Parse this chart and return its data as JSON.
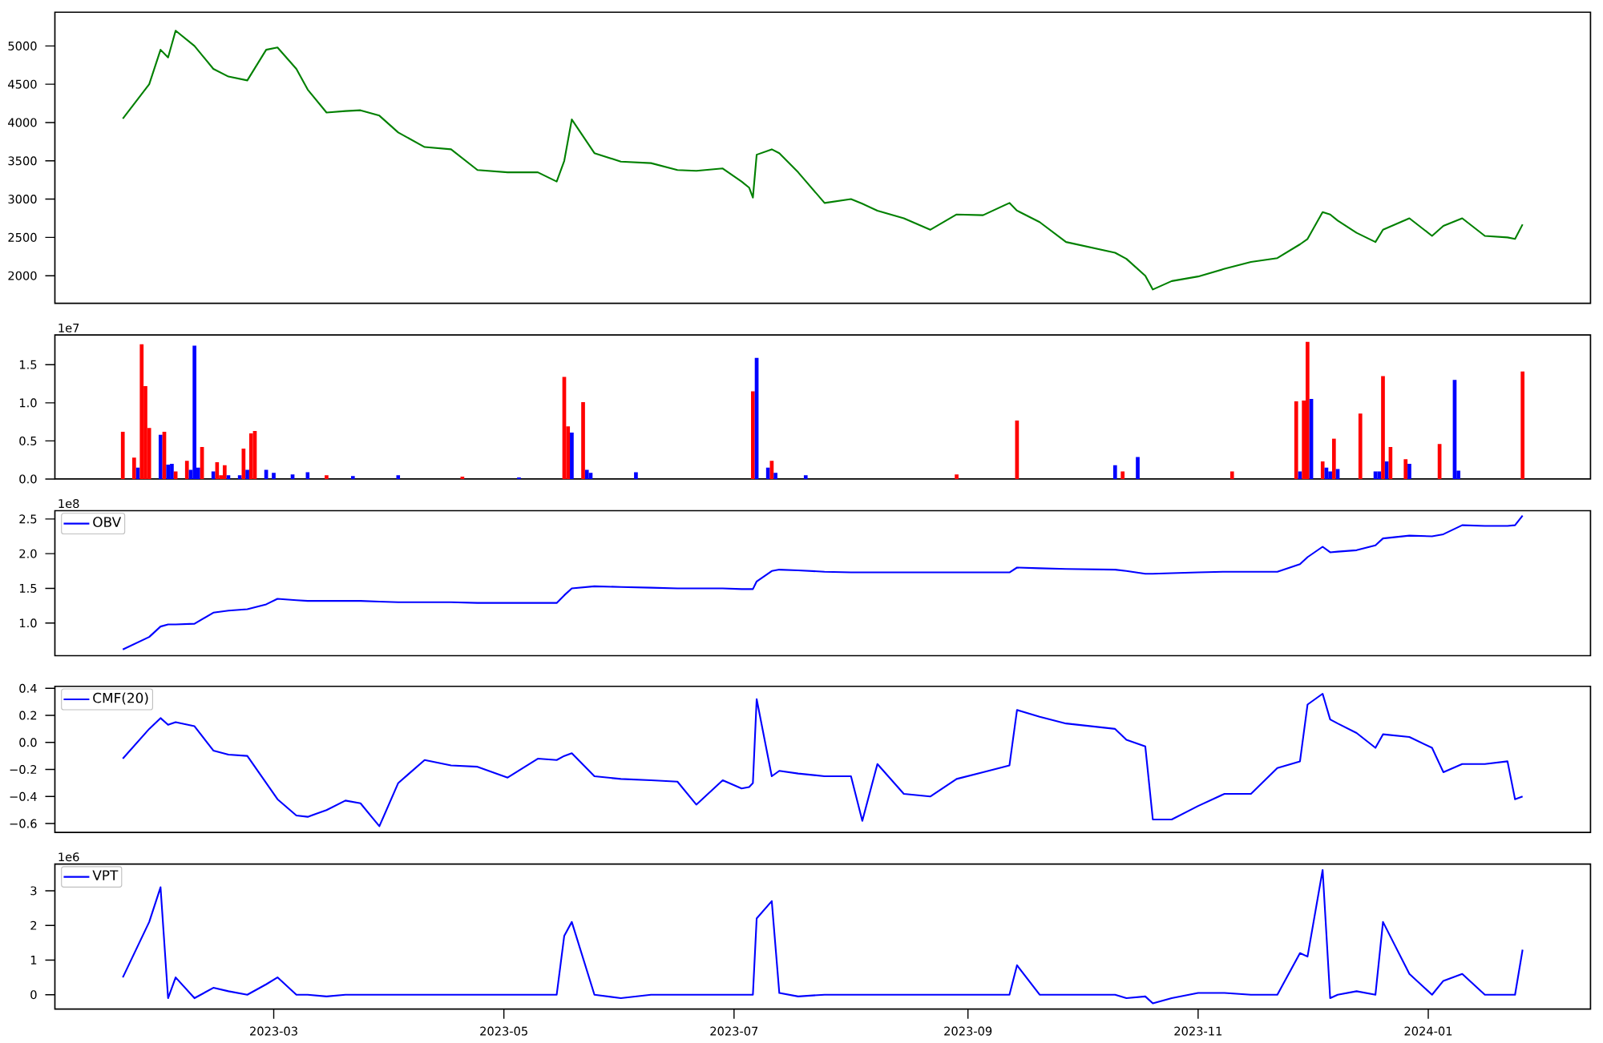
{
  "chart_data": [
    {
      "type": "line",
      "x": [
        "2023-01-20",
        "2023-01-27",
        "2023-01-30",
        "2023-02-01",
        "2023-02-03",
        "2023-02-08",
        "2023-02-13",
        "2023-02-17",
        "2023-02-22",
        "2023-02-27",
        "2023-03-02",
        "2023-03-07",
        "2023-03-10",
        "2023-03-15",
        "2023-03-20",
        "2023-03-24",
        "2023-03-29",
        "2023-04-03",
        "2023-04-10",
        "2023-04-17",
        "2023-04-24",
        "2023-05-02",
        "2023-05-10",
        "2023-05-15",
        "2023-05-17",
        "2023-05-19",
        "2023-05-25",
        "2023-06-01",
        "2023-06-09",
        "2023-06-16",
        "2023-06-21",
        "2023-06-28",
        "2023-07-03",
        "2023-07-05",
        "2023-07-06",
        "2023-07-07",
        "2023-07-11",
        "2023-07-13",
        "2023-07-18",
        "2023-07-25",
        "2023-08-01",
        "2023-08-04",
        "2023-08-08",
        "2023-08-15",
        "2023-08-22",
        "2023-08-29",
        "2023-09-05",
        "2023-09-12",
        "2023-09-14",
        "2023-09-20",
        "2023-09-27",
        "2023-10-10",
        "2023-10-13",
        "2023-10-18",
        "2023-10-20",
        "2023-10-25",
        "2023-11-01",
        "2023-11-08",
        "2023-11-15",
        "2023-11-22",
        "2023-11-28",
        "2023-11-30",
        "2023-12-04",
        "2023-12-06",
        "2023-12-08",
        "2023-12-13",
        "2023-12-18",
        "2023-12-20",
        "2023-12-27",
        "2024-01-02",
        "2024-01-05",
        "2024-01-10",
        "2024-01-16",
        "2024-01-22",
        "2024-01-24",
        "2024-01-26"
      ],
      "series": [
        {
          "color": "#008000",
          "values": [
            4050,
            4500,
            4950,
            4850,
            5200,
            5000,
            4700,
            4600,
            4550,
            4950,
            4980,
            4700,
            4430,
            4130,
            4150,
            4160,
            4090,
            3870,
            3680,
            3650,
            3380,
            3350,
            3350,
            3230,
            3500,
            4040,
            3600,
            3490,
            3470,
            3380,
            3370,
            3400,
            3230,
            3150,
            3020,
            3580,
            3650,
            3600,
            3350,
            2950,
            3000,
            2940,
            2850,
            2750,
            2600,
            2800,
            2790,
            2950,
            2850,
            2700,
            2440,
            2300,
            2220,
            2000,
            1820,
            1930,
            1990,
            2090,
            2180,
            2230,
            2410,
            2480,
            2830,
            2800,
            2720,
            2560,
            2440,
            2600,
            2750,
            2520,
            2650,
            2750,
            2520,
            2500,
            2480,
            2670
          ]
        }
      ],
      "xlim": [
        "2023-01-02",
        "2024-02-13"
      ],
      "ylim": [
        1640,
        5440
      ],
      "yticks": [
        2000,
        2500,
        3000,
        3500,
        4000,
        4500,
        5000
      ],
      "tick_labels": "y"
    },
    {
      "type": "bar",
      "x": [
        "2023-01-20",
        "2023-01-23",
        "2023-01-24",
        "2023-01-25",
        "2023-01-26",
        "2023-01-27",
        "2023-01-30",
        "2023-01-31",
        "2023-02-01",
        "2023-02-02",
        "2023-02-03",
        "2023-02-06",
        "2023-02-07",
        "2023-02-08",
        "2023-02-09",
        "2023-02-10",
        "2023-02-13",
        "2023-02-14",
        "2023-02-15",
        "2023-02-16",
        "2023-02-17",
        "2023-02-20",
        "2023-02-21",
        "2023-02-22",
        "2023-02-23",
        "2023-02-24",
        "2023-02-27",
        "2023-03-01",
        "2023-03-06",
        "2023-03-10",
        "2023-03-15",
        "2023-03-22",
        "2023-04-03",
        "2023-04-20",
        "2023-05-05",
        "2023-05-17",
        "2023-05-18",
        "2023-05-19",
        "2023-05-22",
        "2023-05-23",
        "2023-05-24",
        "2023-06-05",
        "2023-07-06",
        "2023-07-07",
        "2023-07-10",
        "2023-07-11",
        "2023-07-12",
        "2023-07-20",
        "2023-08-29",
        "2023-09-14",
        "2023-10-10",
        "2023-10-12",
        "2023-10-16",
        "2023-11-10",
        "2023-11-27",
        "2023-11-28",
        "2023-11-29",
        "2023-11-30",
        "2023-12-01",
        "2023-12-04",
        "2023-12-05",
        "2023-12-06",
        "2023-12-07",
        "2023-12-08",
        "2023-12-14",
        "2023-12-18",
        "2023-12-19",
        "2023-12-20",
        "2023-12-21",
        "2023-12-22",
        "2023-12-26",
        "2023-12-27",
        "2024-01-04",
        "2024-01-08",
        "2024-01-09",
        "2024-01-26"
      ],
      "values": [
        0.62,
        0.28,
        0.15,
        1.77,
        1.22,
        0.67,
        0.58,
        0.62,
        0.19,
        0.2,
        0.1,
        0.24,
        0.12,
        1.75,
        0.15,
        0.42,
        0.1,
        0.22,
        0.05,
        0.18,
        0.05,
        0.05,
        0.4,
        0.12,
        0.6,
        0.63,
        0.12,
        0.08,
        0.06,
        0.09,
        0.05,
        0.04,
        0.05,
        0.03,
        0.02,
        1.34,
        0.69,
        0.61,
        1.01,
        0.12,
        0.08,
        0.09,
        1.15,
        1.59,
        0.15,
        0.24,
        0.08,
        0.05,
        0.06,
        0.77,
        0.18,
        0.1,
        0.29,
        0.1,
        1.02,
        0.1,
        1.03,
        1.8,
        1.05,
        0.23,
        0.15,
        0.1,
        0.53,
        0.13,
        0.86,
        0.1,
        0.1,
        1.35,
        0.23,
        0.42,
        0.26,
        0.2,
        0.46,
        1.3,
        0.11,
        1.41
      ],
      "colors": [
        "#ff0000",
        "#ff0000",
        "#0000ff",
        "#ff0000",
        "#ff0000",
        "#ff0000",
        "#0000ff",
        "#ff0000",
        "#0000ff",
        "#0000ff",
        "#ff0000",
        "#ff0000",
        "#0000ff",
        "#0000ff",
        "#0000ff",
        "#ff0000",
        "#0000ff",
        "#ff0000",
        "#ff0000",
        "#ff0000",
        "#0000ff",
        "#0000ff",
        "#ff0000",
        "#0000ff",
        "#ff0000",
        "#ff0000",
        "#0000ff",
        "#0000ff",
        "#0000ff",
        "#0000ff",
        "#ff0000",
        "#0000ff",
        "#0000ff",
        "#ff0000",
        "#0000ff",
        "#ff0000",
        "#ff0000",
        "#0000ff",
        "#ff0000",
        "#0000ff",
        "#0000ff",
        "#0000ff",
        "#ff0000",
        "#0000ff",
        "#0000ff",
        "#ff0000",
        "#0000ff",
        "#0000ff",
        "#ff0000",
        "#ff0000",
        "#0000ff",
        "#ff0000",
        "#0000ff",
        "#ff0000",
        "#ff0000",
        "#0000ff",
        "#ff0000",
        "#ff0000",
        "#0000ff",
        "#ff0000",
        "#0000ff",
        "#0000ff",
        "#ff0000",
        "#0000ff",
        "#ff0000",
        "#0000ff",
        "#0000ff",
        "#ff0000",
        "#0000ff",
        "#ff0000",
        "#ff0000",
        "#0000ff",
        "#ff0000",
        "#0000ff",
        "#0000ff",
        "#ff0000"
      ],
      "xlim": [
        "2023-01-02",
        "2024-02-13"
      ],
      "ylim": [
        0,
        1.89
      ],
      "yticks": [
        {
          "value": 0,
          "label": "0.0"
        },
        {
          "value": 0.5,
          "label": "0.5"
        },
        {
          "value": 1.0,
          "label": "1.0"
        },
        {
          "value": 1.5,
          "label": "1.5"
        }
      ],
      "annotations": [
        "1e7"
      ],
      "tick_labels": "y"
    },
    {
      "type": "line",
      "x": [
        "2023-01-20",
        "2023-01-27",
        "2023-01-30",
        "2023-02-01",
        "2023-02-03",
        "2023-02-08",
        "2023-02-13",
        "2023-02-17",
        "2023-02-22",
        "2023-02-27",
        "2023-03-02",
        "2023-03-07",
        "2023-03-10",
        "2023-03-15",
        "2023-03-20",
        "2023-03-24",
        "2023-03-29",
        "2023-04-03",
        "2023-04-10",
        "2023-04-17",
        "2023-04-24",
        "2023-05-02",
        "2023-05-10",
        "2023-05-15",
        "2023-05-17",
        "2023-05-19",
        "2023-05-25",
        "2023-06-01",
        "2023-06-09",
        "2023-06-16",
        "2023-06-21",
        "2023-06-28",
        "2023-07-03",
        "2023-07-05",
        "2023-07-06",
        "2023-07-07",
        "2023-07-11",
        "2023-07-13",
        "2023-07-18",
        "2023-07-25",
        "2023-08-01",
        "2023-08-04",
        "2023-08-08",
        "2023-08-15",
        "2023-08-22",
        "2023-08-29",
        "2023-09-05",
        "2023-09-12",
        "2023-09-14",
        "2023-09-20",
        "2023-09-27",
        "2023-10-10",
        "2023-10-13",
        "2023-10-18",
        "2023-10-20",
        "2023-10-25",
        "2023-11-01",
        "2023-11-08",
        "2023-11-15",
        "2023-11-22",
        "2023-11-28",
        "2023-11-30",
        "2023-12-04",
        "2023-12-06",
        "2023-12-08",
        "2023-12-13",
        "2023-12-18",
        "2023-12-20",
        "2023-12-27",
        "2024-01-02",
        "2024-01-05",
        "2024-01-10",
        "2024-01-16",
        "2024-01-22",
        "2024-01-24",
        "2024-01-26"
      ],
      "series": [
        {
          "name": "OBV",
          "color": "#0000ff",
          "values": [
            0.62,
            0.8,
            0.95,
            0.98,
            0.98,
            0.99,
            1.15,
            1.18,
            1.2,
            1.27,
            1.35,
            1.33,
            1.32,
            1.32,
            1.32,
            1.32,
            1.31,
            1.3,
            1.3,
            1.3,
            1.29,
            1.29,
            1.29,
            1.29,
            1.4,
            1.5,
            1.53,
            1.52,
            1.51,
            1.5,
            1.5,
            1.5,
            1.49,
            1.49,
            1.49,
            1.6,
            1.75,
            1.77,
            1.76,
            1.74,
            1.73,
            1.73,
            1.73,
            1.73,
            1.73,
            1.73,
            1.73,
            1.73,
            1.8,
            1.79,
            1.78,
            1.77,
            1.75,
            1.71,
            1.71,
            1.72,
            1.73,
            1.74,
            1.74,
            1.74,
            1.85,
            1.95,
            2.1,
            2.02,
            2.03,
            2.05,
            2.12,
            2.22,
            2.26,
            2.25,
            2.28,
            2.41,
            2.4,
            2.4,
            2.41,
            2.55
          ]
        }
      ],
      "xlim": [
        "2023-01-02",
        "2024-02-13"
      ],
      "ylim": [
        0.53,
        2.62
      ],
      "yticks": [
        {
          "value": 1.0,
          "label": "1.0"
        },
        {
          "value": 1.5,
          "label": "1.5"
        },
        {
          "value": 2.0,
          "label": "2.0"
        },
        {
          "value": 2.5,
          "label": "2.5"
        }
      ],
      "annotations": [
        "1e8"
      ],
      "legend": "top left",
      "tick_labels": "y"
    },
    {
      "type": "line",
      "x": [
        "2023-01-20",
        "2023-01-27",
        "2023-01-30",
        "2023-02-01",
        "2023-02-03",
        "2023-02-08",
        "2023-02-13",
        "2023-02-17",
        "2023-02-22",
        "2023-02-27",
        "2023-03-02",
        "2023-03-07",
        "2023-03-10",
        "2023-03-15",
        "2023-03-20",
        "2023-03-24",
        "2023-03-29",
        "2023-04-03",
        "2023-04-10",
        "2023-04-17",
        "2023-04-24",
        "2023-05-02",
        "2023-05-10",
        "2023-05-15",
        "2023-05-17",
        "2023-05-19",
        "2023-05-25",
        "2023-06-01",
        "2023-06-09",
        "2023-06-16",
        "2023-06-21",
        "2023-06-28",
        "2023-07-03",
        "2023-07-05",
        "2023-07-06",
        "2023-07-07",
        "2023-07-11",
        "2023-07-13",
        "2023-07-18",
        "2023-07-25",
        "2023-08-01",
        "2023-08-04",
        "2023-08-08",
        "2023-08-15",
        "2023-08-22",
        "2023-08-29",
        "2023-09-05",
        "2023-09-12",
        "2023-09-14",
        "2023-09-20",
        "2023-09-27",
        "2023-10-10",
        "2023-10-13",
        "2023-10-18",
        "2023-10-20",
        "2023-10-25",
        "2023-11-01",
        "2023-11-08",
        "2023-11-15",
        "2023-11-22",
        "2023-11-28",
        "2023-11-30",
        "2023-12-04",
        "2023-12-06",
        "2023-12-08",
        "2023-12-13",
        "2023-12-18",
        "2023-12-20",
        "2023-12-27",
        "2024-01-02",
        "2024-01-05",
        "2024-01-10",
        "2024-01-16",
        "2024-01-22",
        "2024-01-24",
        "2024-01-26"
      ],
      "series": [
        {
          "name": "CMF(20)",
          "color": "#0000ff",
          "values": [
            -0.12,
            0.1,
            0.18,
            0.13,
            0.15,
            0.12,
            -0.06,
            -0.09,
            -0.1,
            -0.3,
            -0.42,
            -0.54,
            -0.55,
            -0.5,
            -0.43,
            -0.45,
            -0.62,
            -0.3,
            -0.13,
            -0.17,
            -0.18,
            -0.26,
            -0.12,
            -0.13,
            -0.1,
            -0.08,
            -0.25,
            -0.27,
            -0.28,
            -0.29,
            -0.46,
            -0.28,
            -0.34,
            -0.33,
            -0.3,
            0.32,
            -0.25,
            -0.21,
            -0.23,
            -0.25,
            -0.25,
            -0.58,
            -0.16,
            -0.38,
            -0.4,
            -0.27,
            -0.22,
            -0.17,
            0.24,
            0.19,
            0.14,
            0.1,
            0.02,
            -0.03,
            -0.57,
            -0.57,
            -0.47,
            -0.38,
            -0.38,
            -0.19,
            -0.14,
            0.28,
            0.36,
            0.17,
            0.14,
            0.07,
            -0.04,
            0.06,
            0.04,
            -0.04,
            -0.22,
            -0.16,
            -0.16,
            -0.14,
            -0.42,
            -0.4
          ]
        }
      ],
      "xlim": [
        "2023-01-02",
        "2024-02-13"
      ],
      "ylim": [
        -0.665,
        0.415
      ],
      "yticks": [
        {
          "value": -0.6,
          "label": "−0.6"
        },
        {
          "value": -0.4,
          "label": "−0.4"
        },
        {
          "value": -0.2,
          "label": "−0.2"
        },
        {
          "value": 0,
          "label": "0.0"
        },
        {
          "value": 0.2,
          "label": "0.2"
        },
        {
          "value": 0.4,
          "label": "0.4"
        }
      ],
      "legend": "top left",
      "tick_labels": "y"
    },
    {
      "type": "line",
      "x": [
        "2023-01-20",
        "2023-01-27",
        "2023-01-30",
        "2023-02-01",
        "2023-02-03",
        "2023-02-08",
        "2023-02-13",
        "2023-02-17",
        "2023-02-22",
        "2023-02-27",
        "2023-03-02",
        "2023-03-07",
        "2023-03-10",
        "2023-03-15",
        "2023-03-20",
        "2023-03-24",
        "2023-03-29",
        "2023-04-03",
        "2023-04-10",
        "2023-04-17",
        "2023-04-24",
        "2023-05-02",
        "2023-05-10",
        "2023-05-15",
        "2023-05-17",
        "2023-05-19",
        "2023-05-25",
        "2023-06-01",
        "2023-06-09",
        "2023-06-16",
        "2023-06-21",
        "2023-06-28",
        "2023-07-03",
        "2023-07-05",
        "2023-07-06",
        "2023-07-07",
        "2023-07-11",
        "2023-07-13",
        "2023-07-18",
        "2023-07-25",
        "2023-08-01",
        "2023-08-04",
        "2023-08-08",
        "2023-08-15",
        "2023-08-22",
        "2023-08-29",
        "2023-09-05",
        "2023-09-12",
        "2023-09-14",
        "2023-09-20",
        "2023-09-27",
        "2023-10-10",
        "2023-10-13",
        "2023-10-18",
        "2023-10-20",
        "2023-10-25",
        "2023-11-01",
        "2023-11-08",
        "2023-11-15",
        "2023-11-22",
        "2023-11-28",
        "2023-11-30",
        "2023-12-04",
        "2023-12-06",
        "2023-12-08",
        "2023-12-13",
        "2023-12-18",
        "2023-12-20",
        "2023-12-27",
        "2024-01-02",
        "2024-01-05",
        "2024-01-10",
        "2024-01-16",
        "2024-01-22",
        "2024-01-24",
        "2024-01-26"
      ],
      "series": [
        {
          "name": "VPT",
          "color": "#0000ff",
          "values": [
            0.5,
            2.1,
            3.1,
            -0.1,
            0.5,
            -0.1,
            0.2,
            0.1,
            0,
            0.3,
            0.5,
            0,
            0,
            -0.05,
            0,
            0,
            0,
            0,
            0,
            0,
            0,
            0,
            0,
            0,
            1.7,
            2.1,
            0,
            -0.1,
            0,
            0,
            0,
            0,
            0,
            0,
            0,
            2.2,
            2.7,
            0.05,
            -0.05,
            0,
            0,
            0,
            0,
            0,
            0,
            0,
            0,
            0,
            0.85,
            0,
            0,
            0,
            -0.1,
            -0.05,
            -0.25,
            -0.1,
            0.05,
            0.05,
            0,
            0,
            1.2,
            1.1,
            3.6,
            -0.1,
            0,
            0.1,
            0,
            2.1,
            0.6,
            0,
            0.4,
            0.6,
            0,
            0,
            0,
            1.3
          ]
        }
      ],
      "xlim": [
        "2023-01-02",
        "2024-02-13"
      ],
      "ylim": [
        -0.415,
        3.77
      ],
      "yticks": [
        0,
        1,
        2,
        3
      ],
      "xticks": [
        "2023-03",
        "2023-05",
        "2023-07",
        "2023-09",
        "2023-11",
        "2024-01"
      ],
      "annotations": [
        "1e6"
      ],
      "legend": "top left"
    }
  ]
}
